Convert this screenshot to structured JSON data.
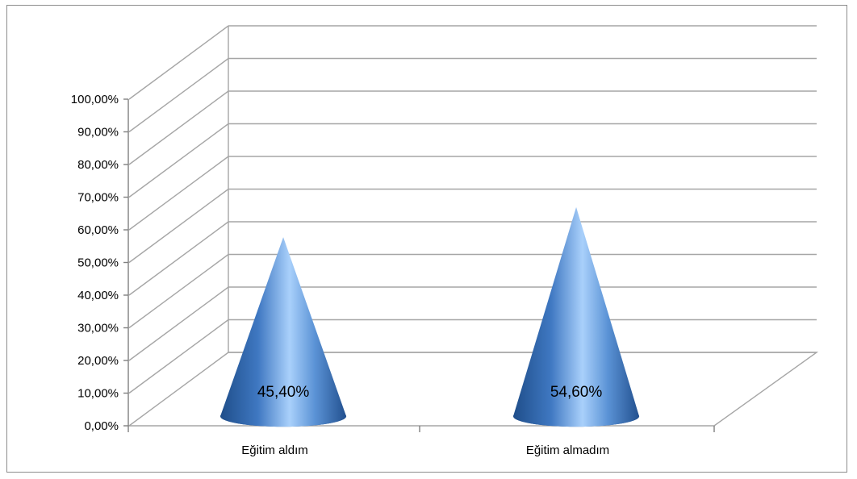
{
  "chart_data": {
    "type": "bar",
    "subtype": "3d-cone",
    "categories": [
      "Eğitim aldım",
      "Eğitim almadım"
    ],
    "values": [
      45.4,
      54.6
    ],
    "data_labels": [
      "45,40%",
      "54,60%"
    ],
    "y_ticks": [
      "0,00%",
      "10,00%",
      "20,00%",
      "30,00%",
      "40,00%",
      "50,00%",
      "60,00%",
      "70,00%",
      "80,00%",
      "90,00%",
      "100,00%"
    ],
    "ylim": [
      0,
      100
    ],
    "grid": true,
    "legend": "none",
    "colors": {
      "cone": "#4f81bd",
      "cone_light": "#9cc3f0",
      "cone_dark": "#2a5a96",
      "grid": "#a6a6a6",
      "axis": "#808080"
    }
  }
}
